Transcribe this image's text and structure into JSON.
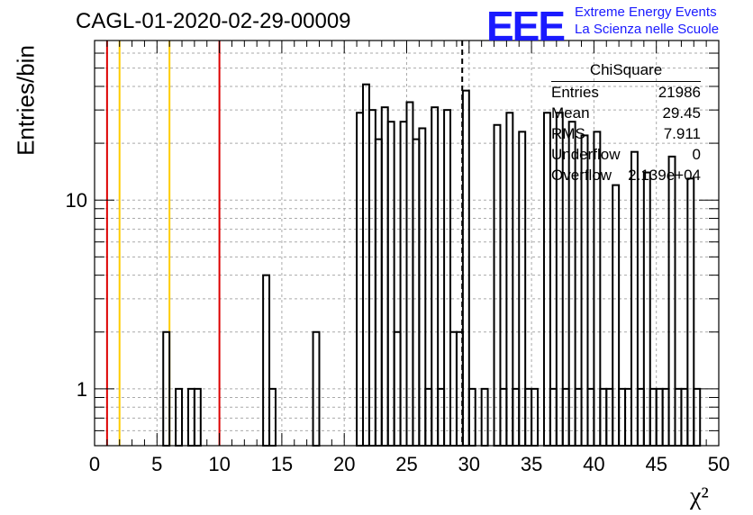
{
  "header": {
    "title": "CAGL-01-2020-02-29-00009",
    "logo": "EEE",
    "logo_line1": "Extreme Energy Events",
    "logo_line2": "La Scienza nelle Scuole"
  },
  "stats_box": {
    "title": "ChiSquare",
    "rows": [
      {
        "label": "Entries",
        "value": "21986"
      },
      {
        "label": "Mean",
        "value": "29.45"
      },
      {
        "label": "RMS",
        "value": "7.911"
      },
      {
        "label": "Underflow",
        "value": "0"
      },
      {
        "label": "Overflow",
        "value": "2.139e+04"
      }
    ]
  },
  "chart_data": {
    "type": "bar",
    "title": "CAGL-01-2020-02-29-00009",
    "xlabel": "χ²",
    "ylabel": "Entries/bin",
    "xlim": [
      0,
      50
    ],
    "ylim": [
      0.5,
      70
    ],
    "yscale": "log",
    "grid": true,
    "bin_width": 0.5,
    "x_ticks": [
      "0",
      "5",
      "10",
      "15",
      "20",
      "25",
      "30",
      "35",
      "40",
      "45",
      "50"
    ],
    "y_ticks": [
      "1",
      "10"
    ],
    "bins": [
      {
        "x": 5.5,
        "value": 2
      },
      {
        "x": 6.5,
        "value": 1
      },
      {
        "x": 7.5,
        "value": 1
      },
      {
        "x": 8.0,
        "value": 1
      },
      {
        "x": 13.5,
        "value": 4
      },
      {
        "x": 14.0,
        "value": 1
      },
      {
        "x": 17.5,
        "value": 2
      },
      {
        "x": 21.0,
        "value": 29
      },
      {
        "x": 21.5,
        "value": 41
      },
      {
        "x": 22.0,
        "value": 30
      },
      {
        "x": 22.5,
        "value": 21
      },
      {
        "x": 23.0,
        "value": 31
      },
      {
        "x": 23.5,
        "value": 26
      },
      {
        "x": 24.0,
        "value": 2
      },
      {
        "x": 24.5,
        "value": 26
      },
      {
        "x": 25.0,
        "value": 33
      },
      {
        "x": 25.5,
        "value": 21
      },
      {
        "x": 26.0,
        "value": 24
      },
      {
        "x": 26.5,
        "value": 1
      },
      {
        "x": 27.0,
        "value": 31
      },
      {
        "x": 27.5,
        "value": 1
      },
      {
        "x": 28.0,
        "value": 30
      },
      {
        "x": 28.5,
        "value": 2
      },
      {
        "x": 29.0,
        "value": 2
      },
      {
        "x": 29.5,
        "value": 38
      },
      {
        "x": 30.0,
        "value": 1
      },
      {
        "x": 31.0,
        "value": 1
      },
      {
        "x": 32.0,
        "value": 25
      },
      {
        "x": 32.5,
        "value": 1
      },
      {
        "x": 33.0,
        "value": 29
      },
      {
        "x": 33.5,
        "value": 1
      },
      {
        "x": 34.0,
        "value": 23
      },
      {
        "x": 34.5,
        "value": 1
      },
      {
        "x": 35.0,
        "value": 1
      },
      {
        "x": 36.0,
        "value": 29
      },
      {
        "x": 36.5,
        "value": 1
      },
      {
        "x": 37.0,
        "value": 29
      },
      {
        "x": 37.5,
        "value": 1
      },
      {
        "x": 38.0,
        "value": 26
      },
      {
        "x": 38.5,
        "value": 1
      },
      {
        "x": 39.0,
        "value": 22
      },
      {
        "x": 39.5,
        "value": 1
      },
      {
        "x": 40.0,
        "value": 23
      },
      {
        "x": 40.5,
        "value": 1
      },
      {
        "x": 41.0,
        "value": 1
      },
      {
        "x": 41.5,
        "value": 12
      },
      {
        "x": 42.0,
        "value": 1
      },
      {
        "x": 42.5,
        "value": 1
      },
      {
        "x": 43.0,
        "value": 18
      },
      {
        "x": 43.5,
        "value": 1
      },
      {
        "x": 44.0,
        "value": 14
      },
      {
        "x": 44.5,
        "value": 1
      },
      {
        "x": 45.0,
        "value": 1
      },
      {
        "x": 45.5,
        "value": 1
      },
      {
        "x": 46.0,
        "value": 17
      },
      {
        "x": 46.5,
        "value": 1
      },
      {
        "x": 47.0,
        "value": 1
      },
      {
        "x": 47.5,
        "value": 13
      },
      {
        "x": 48.0,
        "value": 1
      }
    ],
    "vertical_lines": [
      {
        "x": 1.0,
        "color": "#dd0000",
        "style": "solid"
      },
      {
        "x": 2.0,
        "color": "#ffcc00",
        "style": "solid"
      },
      {
        "x": 6.0,
        "color": "#ffcc00",
        "style": "solid"
      },
      {
        "x": 10.0,
        "color": "#dd0000",
        "style": "solid"
      },
      {
        "x": 29.45,
        "color": "#000000",
        "style": "dashed"
      }
    ]
  }
}
